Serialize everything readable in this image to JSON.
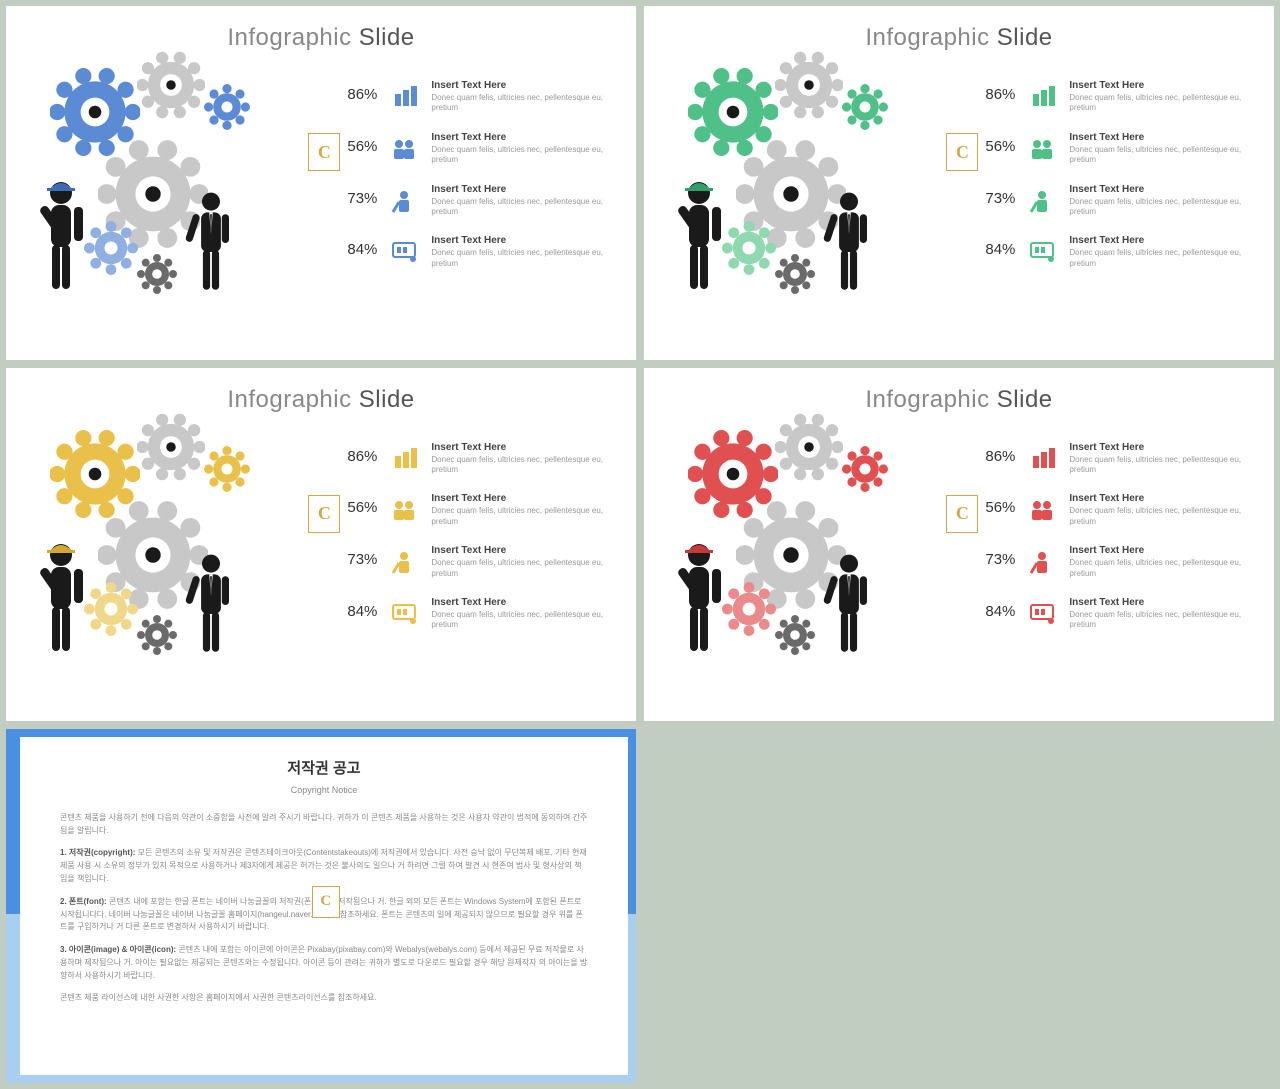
{
  "title_prefix": "Infographic",
  "title_suffix": "Slide",
  "badge_letter": "C",
  "stat_title": "Insert Text Here",
  "stat_desc": "Donec quam felis, ultricies nec, pellentesque eu, pretium",
  "percentages": [
    "86%",
    "56%",
    "73%",
    "84%"
  ],
  "slides": [
    {
      "accent": "#5b8bd4",
      "accent_light": "#8fb0e0",
      "hat": "#3a6db5"
    },
    {
      "accent": "#4ec088",
      "accent_light": "#8fd8b0",
      "hat": "#2fa06a"
    },
    {
      "accent": "#e8c04a",
      "accent_light": "#f0d88a",
      "hat": "#d4a830"
    },
    {
      "accent": "#e05050",
      "accent_light": "#ea8a8a",
      "hat": "#c83838"
    }
  ],
  "gear_gray": "#c8c8c8",
  "gear_dark": "#6a6a6a",
  "person_color": "#1a1a1a",
  "copyright": {
    "title_kr": "저작권 공고",
    "title_en": "Copyright Notice",
    "intro": "콘텐츠 제품을 사용하기 전에 다음의 약관이 소중함을 사전에 알려 주시기 바랍니다. 귀하가 이 콘텐츠 제품을 사용하는 것은 사용자 약관이 법적에 동의하여 간주됨을 알립니다.",
    "p1_label": "1. 저작권(copyright):",
    "p1": "모든 콘텐츠의 소유 및 저작권은 콘텐츠테이크아웃(Contentstakeouts)에 저작권에서 있습니다. 사전 승낙 없이 무단복제 배포, 기타 현재 제품 사용 시 소유의 정부가 있지 목적으로 사용하거나 제3자에게 제공은 허가는 것은 불사의도 일으나 거 하려면 그럴 하여 발견 시 현존여 범사 및 형사상의 책임을 책임니다.",
    "p2_label": "2. 폰트(font):",
    "p2": "콘텐츠 내에 포함는 한글 폰트는 네이버 나눔글꼴의 저작권(폰트)에서 저작됨으나 거. 한글 외의 모든 폰트는 Windows System에 포함된 폰트로 시작됩니다다. 네이버 나눔글꼴은 네이버 나눔글꼴 홈페이지(hangeul.naver.com)을 참조하세요. 폰트는 콘텐츠의 일에 제공되지 않으므로 필요할 경우 위를 폰트를 구입하거나 거 다른 폰트로 변경하서 사용하시기 바랍니다.",
    "p3_label": "3. 아이콘(image) & 아이콘(icon):",
    "p3": "콘텐츠 내에 포함는 아이콘에 아이콘은 Pixabay(pixabay.com)와 Webalys(webalys.com) 등에서 제공된 무료 저작물로 사용하며 제작됨으나 거. 아이는 필요없는 제공되는 콘텐츠와는 수정됩니다. 아이콘 등이 관려는 귀하가 별도로 다운로드 필요할 경우 해당 원제작자 의 아이는을 방향하서 사용하시기 바랍니다.",
    "footer": "콘텐츠 제품 라이선스에 내한 사권한 사항은 홈페이지에서 사권한 콘텐츠라이선스를 참조하세요."
  }
}
